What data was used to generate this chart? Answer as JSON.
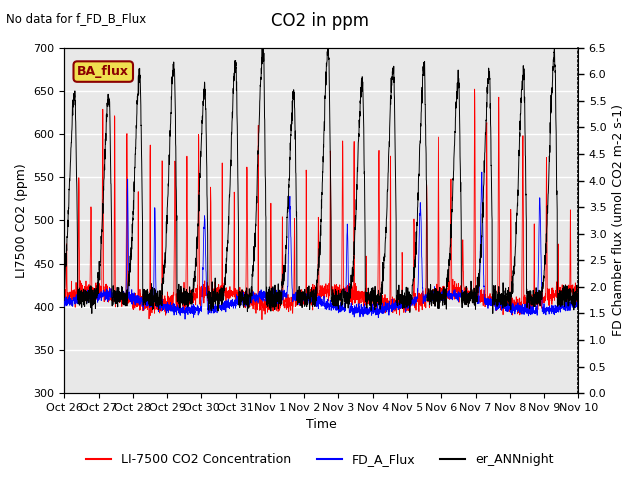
{
  "title": "CO2 in ppm",
  "top_left_text": "No data for f_FD_B_Flux",
  "ylabel_left": "LI7500 CO2 (ppm)",
  "ylabel_right": "FD Chamber flux (umol CO2 m-2 s-1)",
  "xlabel": "Time",
  "ylim_left": [
    300,
    700
  ],
  "ylim_right": [
    0.0,
    6.5
  ],
  "xlim": [
    0,
    15
  ],
  "xtick_positions": [
    0,
    1,
    2,
    3,
    4,
    5,
    6,
    7,
    8,
    9,
    10,
    11,
    12,
    13,
    14,
    15
  ],
  "xtick_labels": [
    "Oct 26",
    "Oct 27",
    "Oct 28",
    "Oct 29",
    "Oct 30",
    "Oct 31",
    "Nov 1",
    "Nov 2",
    "Nov 3",
    "Nov 4",
    "Nov 5",
    "Nov 6",
    "Nov 7",
    "Nov 8",
    "Nov 9",
    "Nov 10"
  ],
  "yticks_left": [
    300,
    350,
    400,
    450,
    500,
    550,
    600,
    650,
    700
  ],
  "yticks_right": [
    0.0,
    0.5,
    1.0,
    1.5,
    2.0,
    2.5,
    3.0,
    3.5,
    4.0,
    4.5,
    5.0,
    5.5,
    6.0,
    6.5
  ],
  "legend_box_label": "BA_flux",
  "legend_box_facecolor": "#f0e050",
  "legend_box_edgecolor": "#8B0000",
  "legend_entries": [
    {
      "label": "LI-7500 CO2 Concentration",
      "color": "red"
    },
    {
      "label": "FD_A_Flux",
      "color": "blue"
    },
    {
      "label": "er_ANNnight",
      "color": "black"
    }
  ],
  "plot_bg_color": "#e8e8e8",
  "title_fontsize": 12,
  "axis_label_fontsize": 9,
  "tick_fontsize": 8,
  "legend_fontsize": 9,
  "n_points": 3000,
  "random_seed": 17
}
